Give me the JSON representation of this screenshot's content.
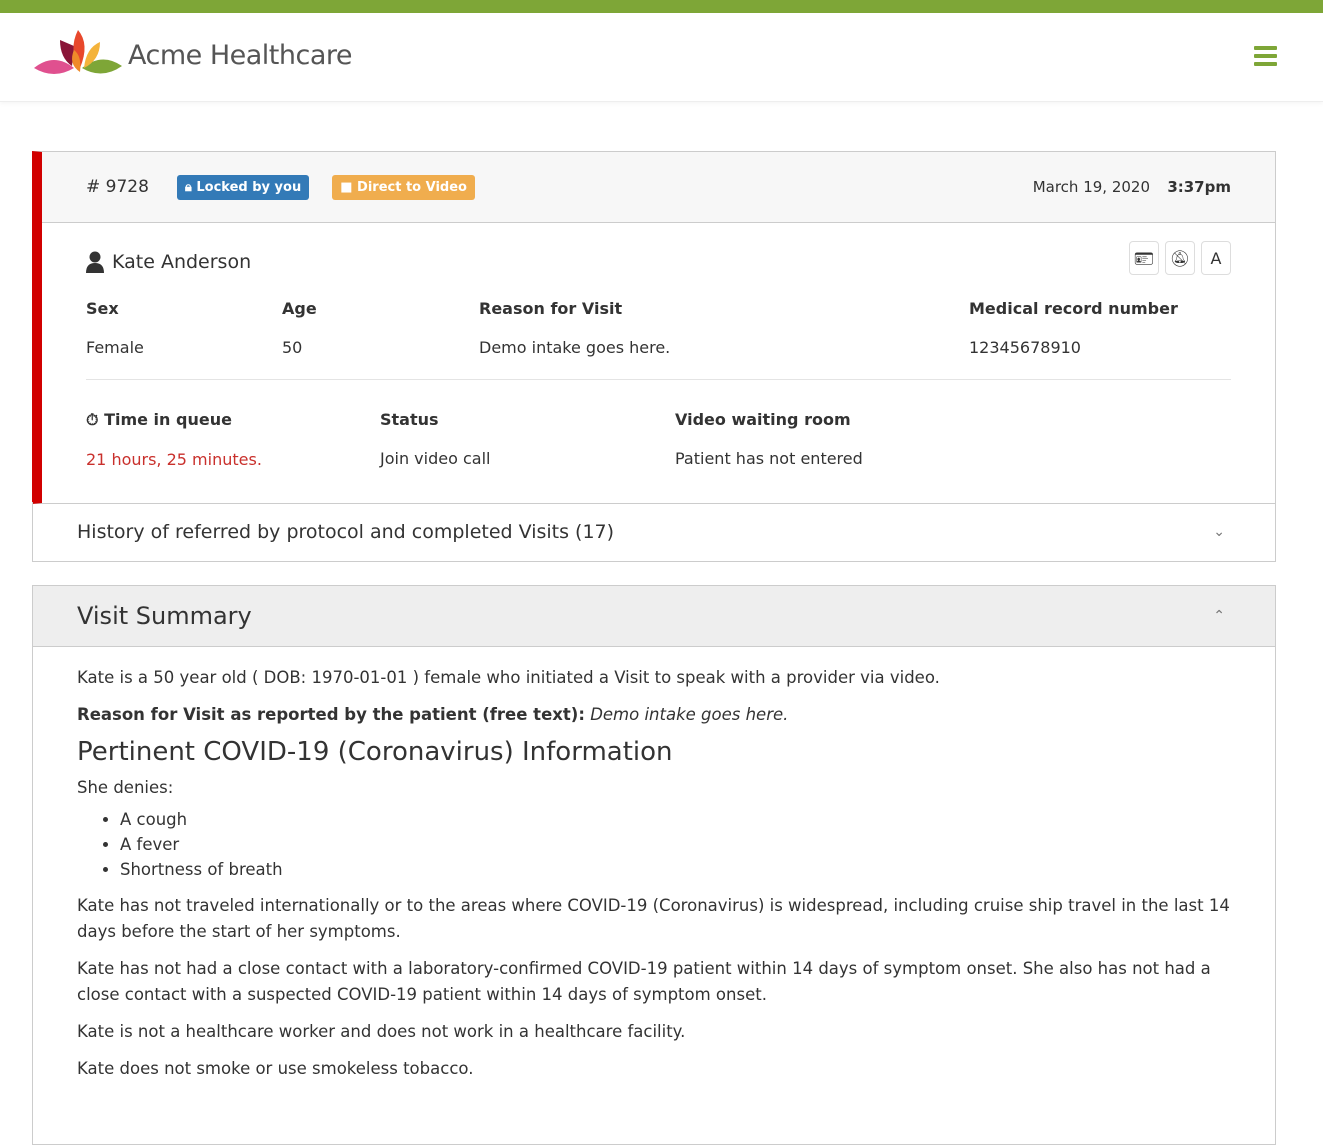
{
  "brand": {
    "name": "Acme Healthcare",
    "accent": "#7ea637"
  },
  "visit": {
    "number": "# 9728",
    "locked_badge": "Locked by you",
    "video_badge": "Direct to Video",
    "date": "March 19, 2020",
    "time": "3:37pm"
  },
  "patient": {
    "name": "Kate Anderson",
    "tools": [
      "id-card-icon",
      "bell-slash-icon",
      "A"
    ],
    "fields": [
      {
        "label": "Sex",
        "value": "Female"
      },
      {
        "label": "Age",
        "value": "50"
      },
      {
        "label": "Reason for Visit",
        "value": "Demo intake goes here."
      },
      {
        "label": "Medical record number",
        "value": "12345678910"
      }
    ],
    "queue": {
      "label": "Time in queue",
      "value": "21 hours, 25 minutes."
    },
    "status": {
      "label": "Status",
      "value": "Join video call"
    },
    "room": {
      "label": "Video waiting room",
      "value": "Patient has not entered"
    }
  },
  "history": {
    "label": "History of referred by protocol and completed Visits (17)"
  },
  "summary": {
    "title": "Visit Summary",
    "intro": "Kate is a 50 year old ( DOB: 1970-01-01 ) female who initiated a Visit to speak with a provider via video.",
    "reason_label": "Reason for Visit as reported by the patient (free text):",
    "reason_value": "Demo intake goes here.",
    "covid_title": "Pertinent COVID-19 (Coronavirus) Information",
    "denies": "She denies:",
    "symptoms": [
      "A cough",
      "A fever",
      "Shortness of breath"
    ],
    "paragraphs": [
      "Kate has not traveled internationally or to the areas where COVID-19 (Coronavirus) is widespread, including cruise ship travel in the last 14 days before the start of her symptoms.",
      "Kate has not had a close contact with a laboratory-confirmed COVID-19 patient within 14 days of symptom onset. She also has not had a close contact with a suspected COVID-19 patient within 14 days of symptom onset.",
      "Kate is not a healthcare worker and does not work in a healthcare facility.",
      "Kate does not smoke or use smokeless tobacco."
    ]
  }
}
